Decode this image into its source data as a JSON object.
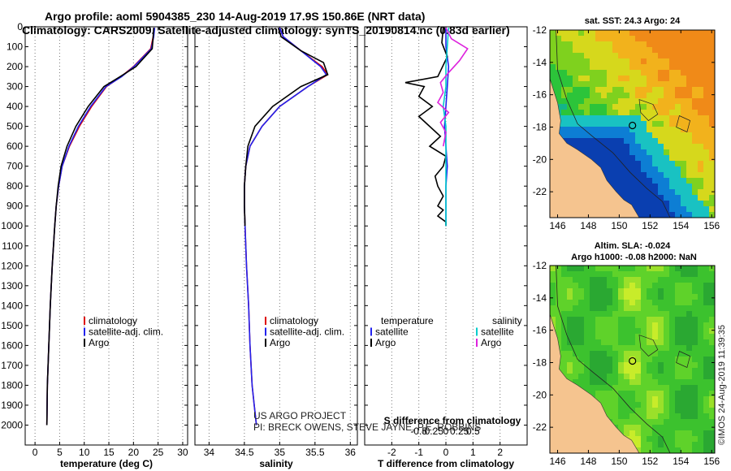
{
  "header": {
    "line1": "Argo profile: aoml 5904385_230 14-Aug-2019 17.9S 150.86E (NRT data)",
    "line2": "Climatology: CARS2009. Satellite-adjusted climatology: synTS_20190814.nc (0.83d earlier)"
  },
  "credits": {
    "line1": "US ARGO PROJECT",
    "line2": "PI: BRECK OWENS, STEVE JAYNE, P.E. ROBBINS",
    "imos": "©IMOS 24-Aug-2019 11:39:35"
  },
  "colors": {
    "climatology": "#dd0000",
    "satellite_adj": "#2222ee",
    "argo": "#000000",
    "salinity_sat": "#00cccc",
    "salinity_argo": "#dd22dd",
    "land": "#f5c48f"
  },
  "chart_data": [
    {
      "type": "line",
      "name": "temperature",
      "xlabel": "temperature (deg C)",
      "ylabel": "",
      "xlim": [
        -2,
        31
      ],
      "ylim": [
        2100,
        0
      ],
      "xticks": [
        0,
        5,
        10,
        15,
        20,
        25,
        30
      ],
      "xtick_labels": [
        "0",
        "5",
        "10",
        "15",
        "20",
        "25",
        "30"
      ],
      "yticks": [
        0,
        100,
        200,
        300,
        400,
        500,
        600,
        700,
        800,
        900,
        1000,
        1100,
        1200,
        1300,
        1400,
        1500,
        1600,
        1700,
        1800,
        1900,
        2000
      ],
      "ytick_labels": [
        "0",
        "100",
        "200",
        "300",
        "400",
        "500",
        "600",
        "700",
        "800",
        "900",
        "1000",
        "1100",
        "1200",
        "1300",
        "1400",
        "1500",
        "1600",
        "1700",
        "1800",
        "1900",
        "2000"
      ],
      "legend": [
        "climatology",
        "satellite-adj. clim.",
        "Argo"
      ],
      "legend_position": "lower-right",
      "series": [
        {
          "name": "climatology",
          "color": "#dd0000",
          "x": [
            24.2,
            24.0,
            23.5,
            20.0,
            17.5,
            14.5,
            11.5,
            9.0,
            7.0,
            5.5,
            4.8,
            4.3,
            4.0,
            3.5,
            3.1,
            2.8,
            2.5,
            2.4
          ],
          "y": [
            5,
            50,
            110,
            200,
            250,
            300,
            400,
            500,
            600,
            700,
            800,
            900,
            1000,
            1200,
            1400,
            1600,
            1800,
            2000
          ]
        },
        {
          "name": "satellite-adj. clim.",
          "color": "#2222ee",
          "x": [
            24.3,
            24.1,
            23.6,
            20.1,
            17.6,
            14.4,
            11.3,
            8.8,
            6.9,
            5.5,
            4.8,
            4.3,
            4.0,
            3.5,
            3.1,
            2.8,
            2.5,
            2.4
          ],
          "y": [
            5,
            50,
            110,
            200,
            250,
            300,
            400,
            500,
            600,
            700,
            800,
            900,
            1000,
            1200,
            1400,
            1600,
            1800,
            2000
          ]
        },
        {
          "name": "Argo",
          "color": "#000000",
          "x": [
            24.1,
            24.0,
            23.8,
            20.5,
            17.3,
            14.0,
            10.8,
            8.3,
            6.5,
            5.3,
            4.7,
            4.3,
            4.0,
            3.5,
            3.1,
            2.8,
            2.5,
            2.4
          ],
          "y": [
            5,
            50,
            110,
            200,
            250,
            300,
            400,
            500,
            600,
            700,
            800,
            900,
            1000,
            1200,
            1400,
            1600,
            1800,
            2000
          ]
        }
      ]
    },
    {
      "type": "line",
      "name": "salinity",
      "xlabel": "salinity",
      "xlim": [
        33.8,
        36.1
      ],
      "ylim": [
        2100,
        0
      ],
      "xticks": [
        34,
        34.5,
        35,
        35.5,
        36
      ],
      "xtick_labels": [
        "34",
        "34.5",
        "35",
        "35.5",
        "36"
      ],
      "legend": [
        "climatology",
        "satellite-adj. clim.",
        "Argo"
      ],
      "legend_position": "lower-right",
      "series": [
        {
          "name": "climatology",
          "color": "#dd0000",
          "x": [
            35.0,
            35.05,
            35.3,
            35.6,
            35.68,
            35.4,
            35.0,
            34.75,
            34.58,
            34.52,
            34.5,
            34.5,
            34.51,
            34.53,
            34.56,
            34.58,
            34.61,
            34.64,
            34.67
          ],
          "y": [
            5,
            50,
            120,
            200,
            240,
            300,
            400,
            500,
            600,
            700,
            800,
            900,
            1000,
            1200,
            1400,
            1600,
            1800,
            1900,
            2000
          ]
        },
        {
          "name": "satellite-adj. clim.",
          "color": "#2222ee",
          "x": [
            35.0,
            35.05,
            35.3,
            35.58,
            35.66,
            35.4,
            35.0,
            34.75,
            34.58,
            34.52,
            34.5,
            34.5,
            34.51,
            34.53,
            34.56,
            34.58,
            34.61,
            34.64,
            34.67
          ],
          "y": [
            5,
            50,
            120,
            200,
            240,
            300,
            400,
            500,
            600,
            700,
            800,
            900,
            1000,
            1200,
            1400,
            1600,
            1800,
            1900,
            2000
          ]
        },
        {
          "name": "Argo",
          "color": "#000000",
          "x": [
            34.98,
            35.02,
            35.3,
            35.62,
            35.68,
            35.3,
            34.9,
            34.65,
            34.55,
            34.52,
            34.5,
            34.5,
            34.51
          ],
          "y": [
            5,
            50,
            120,
            180,
            240,
            300,
            400,
            500,
            600,
            700,
            800,
            900,
            1000
          ]
        }
      ]
    },
    {
      "type": "line",
      "name": "difference from climatology",
      "xlabel": "T difference from climatology",
      "xlabel_top": "S difference from climatology",
      "xlim": [
        -3,
        3
      ],
      "ylim": [
        2100,
        0
      ],
      "xticks": [
        -2,
        -1,
        0,
        1,
        2
      ],
      "xtick_labels": [
        "-2",
        "-1",
        "0",
        "1",
        "2"
      ],
      "sticks": [
        -1,
        -0.5,
        0,
        0.5,
        1
      ],
      "stick_labels": [
        "-0.5",
        "-0.25",
        "0",
        "0.25",
        "0.5"
      ],
      "legend_temperature_title": "temperature",
      "legend_salinity_title": "salinity",
      "legend": [
        "satellite",
        "Argo",
        "satellite",
        "Argo"
      ],
      "legend_position": "lower-center",
      "series": [
        {
          "name": "T satellite",
          "color": "#2222ee",
          "x": [
            0,
            0,
            0.1,
            0.05,
            0.0,
            -0.05,
            0.0,
            0.05,
            0.0,
            0.0,
            0.0
          ],
          "y": [
            5,
            100,
            200,
            300,
            400,
            500,
            600,
            700,
            800,
            900,
            1000
          ]
        },
        {
          "name": "T Argo",
          "color": "#000000",
          "x": [
            -0.1,
            -0.15,
            0.05,
            -0.3,
            -1.5,
            -0.8,
            -1.0,
            -0.5,
            -1.0,
            -0.6,
            -0.2,
            -0.6,
            0.0,
            -0.1,
            -0.4,
            -0.3,
            -0.1,
            -0.3,
            -0.1,
            -0.3,
            0.0,
            0.0
          ],
          "y": [
            5,
            80,
            150,
            250,
            280,
            300,
            350,
            400,
            450,
            500,
            550,
            600,
            650,
            700,
            750,
            800,
            850,
            900,
            920,
            950,
            980,
            1000
          ]
        },
        {
          "name": "S satellite",
          "color": "#00cccc",
          "x": [
            0.1,
            0.05,
            0.0,
            0.0,
            -0.1,
            0.0,
            0.0,
            0.0,
            0.0,
            0.0,
            0.0
          ],
          "y": [
            5,
            100,
            200,
            300,
            400,
            500,
            600,
            700,
            800,
            900,
            1000
          ]
        },
        {
          "name": "S Argo",
          "color": "#dd22dd",
          "x": [
            0.0,
            0.2,
            0.8,
            0.5,
            0.1,
            -0.2,
            -0.1,
            -0.3,
            0.1,
            -0.2,
            0.0,
            -0.1
          ],
          "y": [
            5,
            60,
            110,
            170,
            230,
            280,
            330,
            380,
            430,
            480,
            530,
            600
          ]
        }
      ]
    },
    {
      "type": "heatmap",
      "name": "sat. SST map",
      "title": "sat. SST: 24.3 Argo: 24",
      "xlim": [
        145.5,
        156.2
      ],
      "ylim": [
        -23.6,
        -12
      ],
      "xticks": [
        146,
        148,
        150,
        152,
        154,
        156
      ],
      "xtick_labels": [
        "146",
        "148",
        "150",
        "152",
        "154",
        "156"
      ],
      "yticks": [
        -12,
        -14,
        -16,
        -18,
        -20,
        -22
      ],
      "ytick_labels": [
        "-12",
        "-14",
        "-16",
        "-18",
        "-20",
        "-22"
      ]
    },
    {
      "type": "heatmap",
      "name": "Altim. SLA map",
      "title": "Altim. SLA: -0.024",
      "subtitle": "Argo h1000: -0.08 h2000: NaN",
      "xlim": [
        145.5,
        156.2
      ],
      "ylim": [
        -23.6,
        -12
      ],
      "xticks": [
        146,
        148,
        150,
        152,
        154,
        156
      ],
      "xtick_labels": [
        "146",
        "148",
        "150",
        "152",
        "154",
        "156"
      ],
      "yticks": [
        -12,
        -14,
        -16,
        -18,
        -20,
        -22
      ],
      "ytick_labels": [
        "-12",
        "-14",
        "-16",
        "-18",
        "-20",
        "-22"
      ]
    }
  ]
}
